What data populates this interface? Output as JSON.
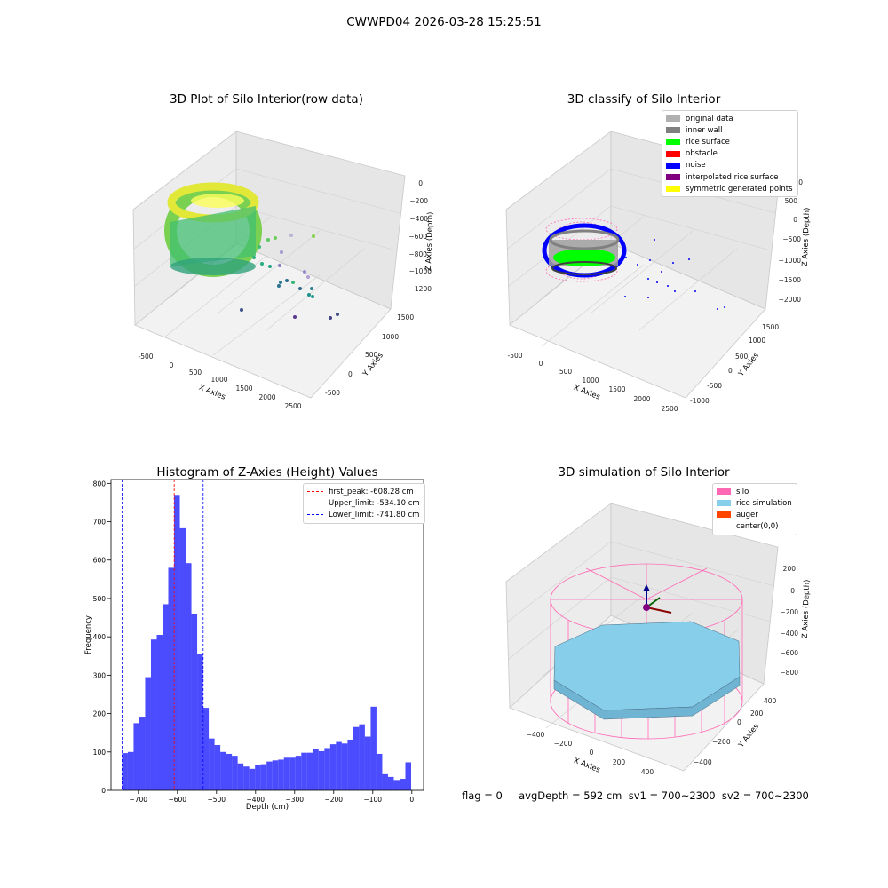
{
  "figure": {
    "suptitle": "CWWPD04 2026-03-28 15:25:51",
    "status_text": "flag = 0     avgDepth = 592 cm  sv1 = 700~2300  sv2 = 700~2300"
  },
  "panel_raw": {
    "title": "3D Plot of Silo Interior(row data)",
    "xlabel": "X Axies",
    "ylabel": "Y Axies",
    "zlabel": "Z Axies (Depth)",
    "xticks": [
      "-500",
      "0",
      "500",
      "1000",
      "1500",
      "2000",
      "2500"
    ],
    "yticks": [
      "-500",
      "0",
      "500",
      "1000",
      "1500"
    ],
    "zticks": [
      "0",
      "−200",
      "−400",
      "−600",
      "−800",
      "−1000",
      "−1200"
    ]
  },
  "panel_classify": {
    "title": "3D classify of Silo Interior",
    "xlabel": "X Axies",
    "ylabel": "Y Axies",
    "zlabel": "Z Axies (Depth)",
    "xticks": [
      "-500",
      "0",
      "500",
      "1000",
      "1500",
      "2000",
      "2500"
    ],
    "yticks": [
      "-1000",
      "-500",
      "0",
      "500",
      "1000",
      "1500"
    ],
    "zticks": [
      "1000",
      "500",
      "0",
      "−500",
      "−1000",
      "−1500",
      "−2000"
    ],
    "legend": [
      {
        "label": "original data",
        "color": "#b0b0b0"
      },
      {
        "label": "inner wall",
        "color": "#808080"
      },
      {
        "label": "rice surface",
        "color": "#00ff00"
      },
      {
        "label": "obstacle",
        "color": "#ff0000"
      },
      {
        "label": "noise",
        "color": "#0000ff"
      },
      {
        "label": "interpolated rice surface",
        "color": "#800080"
      },
      {
        "label": "symmetric generated points",
        "color": "#ffff00"
      }
    ]
  },
  "panel_sim": {
    "title": "3D simulation of Silo Interior",
    "xlabel": "X Axies",
    "ylabel": "Y Axies",
    "zlabel": "Z Axies (Depth)",
    "xticks": [
      "−400",
      "−200",
      "0",
      "200",
      "400"
    ],
    "yticks": [
      "−400",
      "−200",
      "0",
      "200",
      "400"
    ],
    "zticks": [
      "200",
      "0",
      "−200",
      "−400",
      "−600",
      "−800"
    ],
    "legend": [
      {
        "label": "silo",
        "color": "#ff69b4"
      },
      {
        "label": "rice simulation",
        "color": "#87ceeb"
      },
      {
        "label": "auger",
        "color": "#ff4500"
      },
      {
        "label": "center(0,0)",
        "color": ""
      }
    ],
    "colors": {
      "silo": "#ff69b4",
      "rice": "#87ceeb",
      "auger": "#ff4500"
    }
  },
  "chart_data": {
    "type": "bar",
    "title": "Histogram of Z-Axies (Height) Values",
    "xlabel": "Depth (cm)",
    "ylabel": "Frequency",
    "xlim": [
      -770,
      30
    ],
    "ylim": [
      0,
      810
    ],
    "xticks": [
      "−700",
      "−600",
      "−500",
      "−400",
      "−300",
      "−200",
      "−100",
      "0"
    ],
    "yticks": [
      "0",
      "100",
      "200",
      "300",
      "400",
      "500",
      "600",
      "700",
      "800"
    ],
    "bar_color": "#0000ff",
    "bin_width": 14.8,
    "bin_start": -741.8,
    "values": [
      97,
      100,
      175,
      192,
      295,
      393,
      405,
      485,
      580,
      770,
      683,
      592,
      460,
      355,
      215,
      135,
      118,
      100,
      95,
      90,
      70,
      62,
      56,
      67,
      68,
      75,
      78,
      80,
      85,
      85,
      90,
      98,
      98,
      108,
      102,
      110,
      120,
      126,
      122,
      132,
      165,
      172,
      140,
      218,
      95,
      42,
      35,
      27,
      30,
      73
    ],
    "vlines": [
      {
        "label": "first_peak: -608.28 cm",
        "x": -608.28,
        "color": "#ff0000"
      },
      {
        "label": "Upper_limit: -534.10 cm",
        "x": -534.1,
        "color": "#0000ff"
      },
      {
        "label": "Lower_limit: -741.80 cm",
        "x": -741.8,
        "color": "#0000ff"
      }
    ]
  }
}
